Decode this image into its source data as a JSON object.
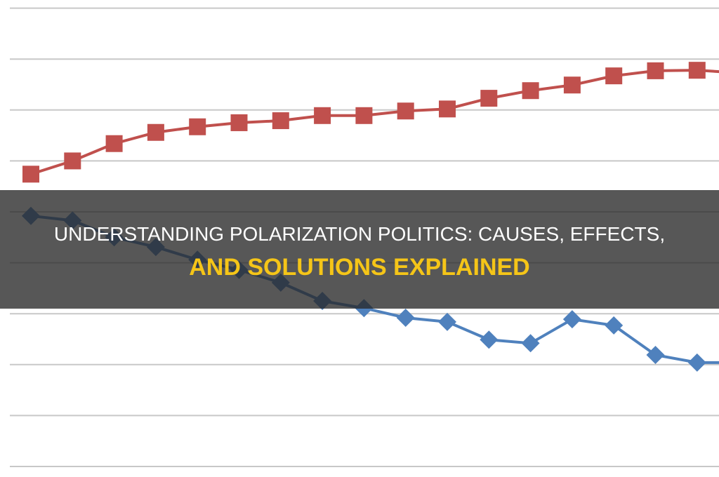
{
  "title": {
    "line1": "UNDERSTANDING POLARIZATION POLITICS: CAUSES, EFFECTS,",
    "line2": "AND SOLUTIONS EXPLAINED",
    "line1_color": "#ffffff",
    "line2_color": "#f5c518"
  },
  "chart_data": {
    "type": "line",
    "title": "",
    "xlabel": "",
    "ylabel": "",
    "grid": true,
    "x": [
      1,
      2,
      3,
      4,
      5,
      6,
      7,
      8,
      9,
      10,
      11,
      12,
      13,
      14,
      15,
      16,
      17,
      18
    ],
    "ylim": [
      0,
      9
    ],
    "series": [
      {
        "color": "#c0504d",
        "marker": "square",
        "values": [
          5.74,
          6.0,
          6.34,
          6.56,
          6.67,
          6.75,
          6.79,
          6.89,
          6.89,
          6.98,
          7.02,
          7.23,
          7.38,
          7.49,
          7.67,
          7.77,
          7.78,
          7.73
        ]
      },
      {
        "color": "#4f81bd",
        "marker": "diamond",
        "values": [
          4.92,
          4.83,
          4.5,
          4.31,
          4.06,
          3.86,
          3.61,
          3.25,
          3.11,
          2.92,
          2.84,
          2.49,
          2.42,
          2.89,
          2.77,
          2.19,
          2.04,
          2.04
        ]
      }
    ]
  }
}
